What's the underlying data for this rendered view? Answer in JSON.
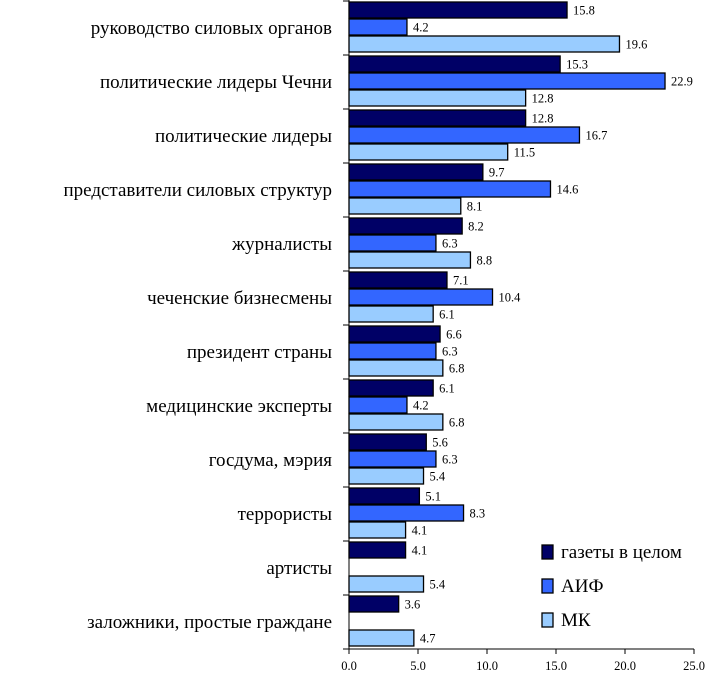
{
  "chart_data": {
    "type": "bar",
    "orientation": "horizontal",
    "categories": [
      "руководство силовых органов",
      "политические лидеры Чечни",
      "политические лидеры",
      "представители силовых структур",
      "журналисты",
      "чеченские бизнесмены",
      "президент страны",
      "медицинские эксперты",
      "госдума, мэрия",
      "террористы",
      "артисты",
      "заложники, простые граждане"
    ],
    "series": [
      {
        "name": "газеты в целом",
        "color": "#000066",
        "values": [
          15.8,
          15.3,
          12.8,
          9.7,
          8.2,
          7.1,
          6.6,
          6.1,
          5.6,
          5.1,
          4.1,
          3.6
        ],
        "labels": [
          "15.8",
          "15.3",
          "12.8",
          "9.7",
          "8.2",
          "7.1",
          "6.6",
          "6.1",
          "5.6",
          "5.1",
          "4.1",
          "3.6"
        ]
      },
      {
        "name": "АИФ",
        "color": "#3366FF",
        "values": [
          4.2,
          22.9,
          16.7,
          14.6,
          6.3,
          10.4,
          6.3,
          4.2,
          6.3,
          8.3,
          null,
          null
        ],
        "labels": [
          "4.2",
          "22.9",
          "16.7",
          "14.6",
          "6.3",
          "10.4",
          "6.3",
          "4.2",
          "6.3",
          "8.3",
          "",
          ""
        ]
      },
      {
        "name": "МК",
        "color": "#99CCFF",
        "values": [
          19.6,
          12.8,
          11.5,
          8.1,
          8.8,
          6.1,
          6.8,
          6.8,
          5.4,
          4.1,
          5.4,
          4.7
        ],
        "labels": [
          "19.6",
          "12.8",
          "11.5",
          "8.1",
          "8.8",
          "6.1",
          "6.8",
          "6.8",
          "5.4",
          "4.1",
          "5.4",
          "4.7"
        ]
      }
    ],
    "xlim": [
      0,
      25
    ],
    "xticks": [
      0,
      5,
      10,
      15,
      20,
      25
    ],
    "xtick_labels": [
      "0.0",
      "5.0",
      "10.0",
      "15.0",
      "20.0",
      "25.0"
    ],
    "title": "",
    "xlabel": "",
    "ylabel": "",
    "grid": false,
    "legend_position": "bottom-right"
  }
}
